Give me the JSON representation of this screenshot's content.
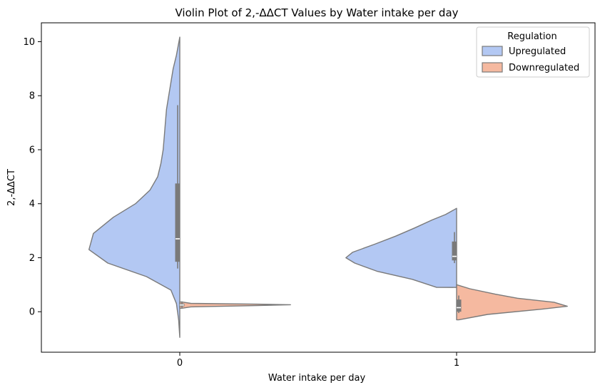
{
  "chart_data": {
    "type": "violin",
    "title": "Violin Plot of 2,-ΔΔCT Values by Water intake per day",
    "xlabel": "Water intake per day",
    "ylabel": "2,-ΔΔCT",
    "categories": [
      "0",
      "1"
    ],
    "ylim": [
      -1.5,
      10.7
    ],
    "y_ticks": [
      0,
      2,
      4,
      6,
      8,
      10
    ],
    "grid": false,
    "split": true,
    "legend": {
      "title": "Regulation",
      "position": "top-right"
    },
    "series": [
      {
        "name": "Upregulated",
        "color": "#b3c8f3",
        "side": "left",
        "groups": [
          {
            "category": "0",
            "density_y": [
              -0.95,
              -0.3,
              0.3,
              0.8,
              1.3,
              1.8,
              2.3,
              2.9,
              3.5,
              4.0,
              4.5,
              5.0,
              5.5,
              6.0,
              6.5,
              7.0,
              7.5,
              8.0,
              8.5,
              9.0,
              9.5,
              10.17
            ],
            "density_w": [
              0.0,
              0.01,
              0.03,
              0.08,
              0.3,
              0.65,
              0.82,
              0.78,
              0.6,
              0.4,
              0.27,
              0.2,
              0.17,
              0.15,
              0.14,
              0.13,
              0.12,
              0.1,
              0.08,
              0.06,
              0.03,
              0.0
            ],
            "quartiles": [
              1.85,
              2.7,
              4.75
            ],
            "whisker": [
              1.6,
              7.65
            ]
          },
          {
            "category": "1",
            "density_y": [
              0.9,
              1.2,
              1.5,
              1.8,
              2.0,
              2.2,
              2.5,
              2.8,
              3.1,
              3.4,
              3.6,
              3.83
            ],
            "density_w": [
              0.18,
              0.4,
              0.72,
              0.92,
              1.0,
              0.94,
              0.74,
              0.55,
              0.38,
              0.22,
              0.1,
              0.0
            ],
            "quartiles": [
              1.9,
              2.05,
              2.6
            ],
            "whisker": [
              1.8,
              2.95
            ]
          }
        ]
      },
      {
        "name": "Downregulated",
        "color": "#f5b9a0",
        "side": "right",
        "groups": [
          {
            "category": "0",
            "density_y": [
              0.13,
              0.18,
              0.23,
              0.26,
              0.28,
              0.31,
              0.36
            ],
            "density_w": [
              0.02,
              0.1,
              0.7,
              1.0,
              0.7,
              0.1,
              0.02
            ],
            "quartiles": [
              0.2,
              0.25,
              0.3
            ],
            "whisker": [
              0.15,
              0.38
            ]
          },
          {
            "category": "1",
            "density_y": [
              -0.3,
              -0.1,
              0.1,
              0.2,
              0.35,
              0.5,
              0.65,
              0.85,
              1.0
            ],
            "density_w": [
              0.02,
              0.28,
              0.78,
              1.0,
              0.88,
              0.55,
              0.35,
              0.12,
              0.0
            ],
            "quartiles": [
              0.0,
              0.15,
              0.45
            ],
            "whisker": [
              -0.05,
              0.6
            ]
          }
        ]
      }
    ]
  }
}
